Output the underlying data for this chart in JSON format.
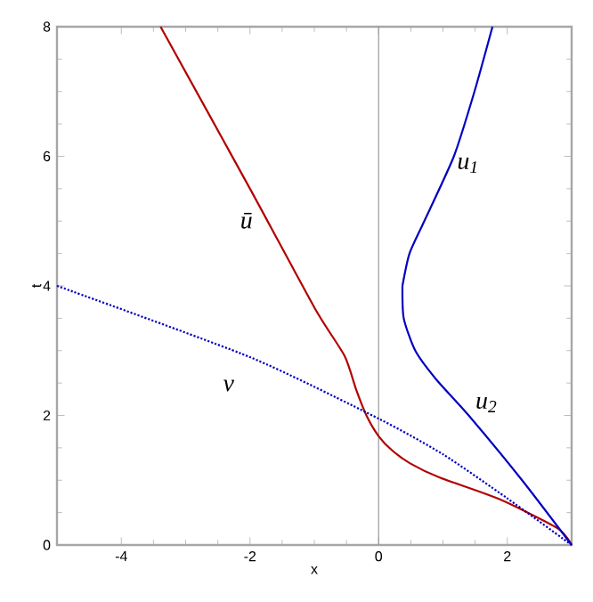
{
  "chart_data": {
    "type": "line",
    "xlabel": "x",
    "ylabel": "t",
    "series": [
      {
        "name": "ū",
        "color": "#b30000",
        "x": [
          3,
          2.78,
          1.87,
          0.95,
          0.49,
          0.21,
          0,
          -0.19,
          -0.35,
          -0.53,
          -0.99,
          -2,
          -3.39
        ],
        "values": [
          0,
          0.26,
          0.71,
          1.04,
          1.26,
          1.46,
          1.68,
          2.0,
          2.4,
          2.92,
          3.65,
          5.5,
          8
        ]
      },
      {
        "name": "u$_{1}$",
        "color": "#0000c0",
        "x": [
          0.37,
          0.48,
          0.71,
          1.17,
          1.49,
          1.77
        ],
        "values": [
          4,
          4.5,
          5,
          6,
          7,
          8
        ]
      },
      {
        "name": "u$_{2}$",
        "color": "#0000c0",
        "x": [
          3,
          2.23,
          1.4,
          0.9,
          0.57,
          0.39,
          0.37
        ],
        "values": [
          0,
          1,
          2,
          2.55,
          3,
          3.5,
          4
        ]
      },
      {
        "name": "v",
        "color": "#0000c0",
        "line_style": "dotted",
        "x": [
          -5,
          -2,
          0,
          1,
          2,
          3
        ],
        "values": [
          4,
          2.9,
          1.95,
          1.4,
          0.72,
          0
        ]
      }
    ],
    "xlim": [
      -5,
      3
    ],
    "ylim": [
      0,
      8
    ],
    "xticks": [
      -4,
      -2,
      0,
      2
    ],
    "yticks": [
      0,
      2,
      4,
      6,
      8
    ],
    "ref_lines": [
      {
        "axis": "x",
        "value": 0,
        "color": "#999999"
      }
    ],
    "grid": false,
    "line_style": "solid",
    "marker": "none"
  }
}
